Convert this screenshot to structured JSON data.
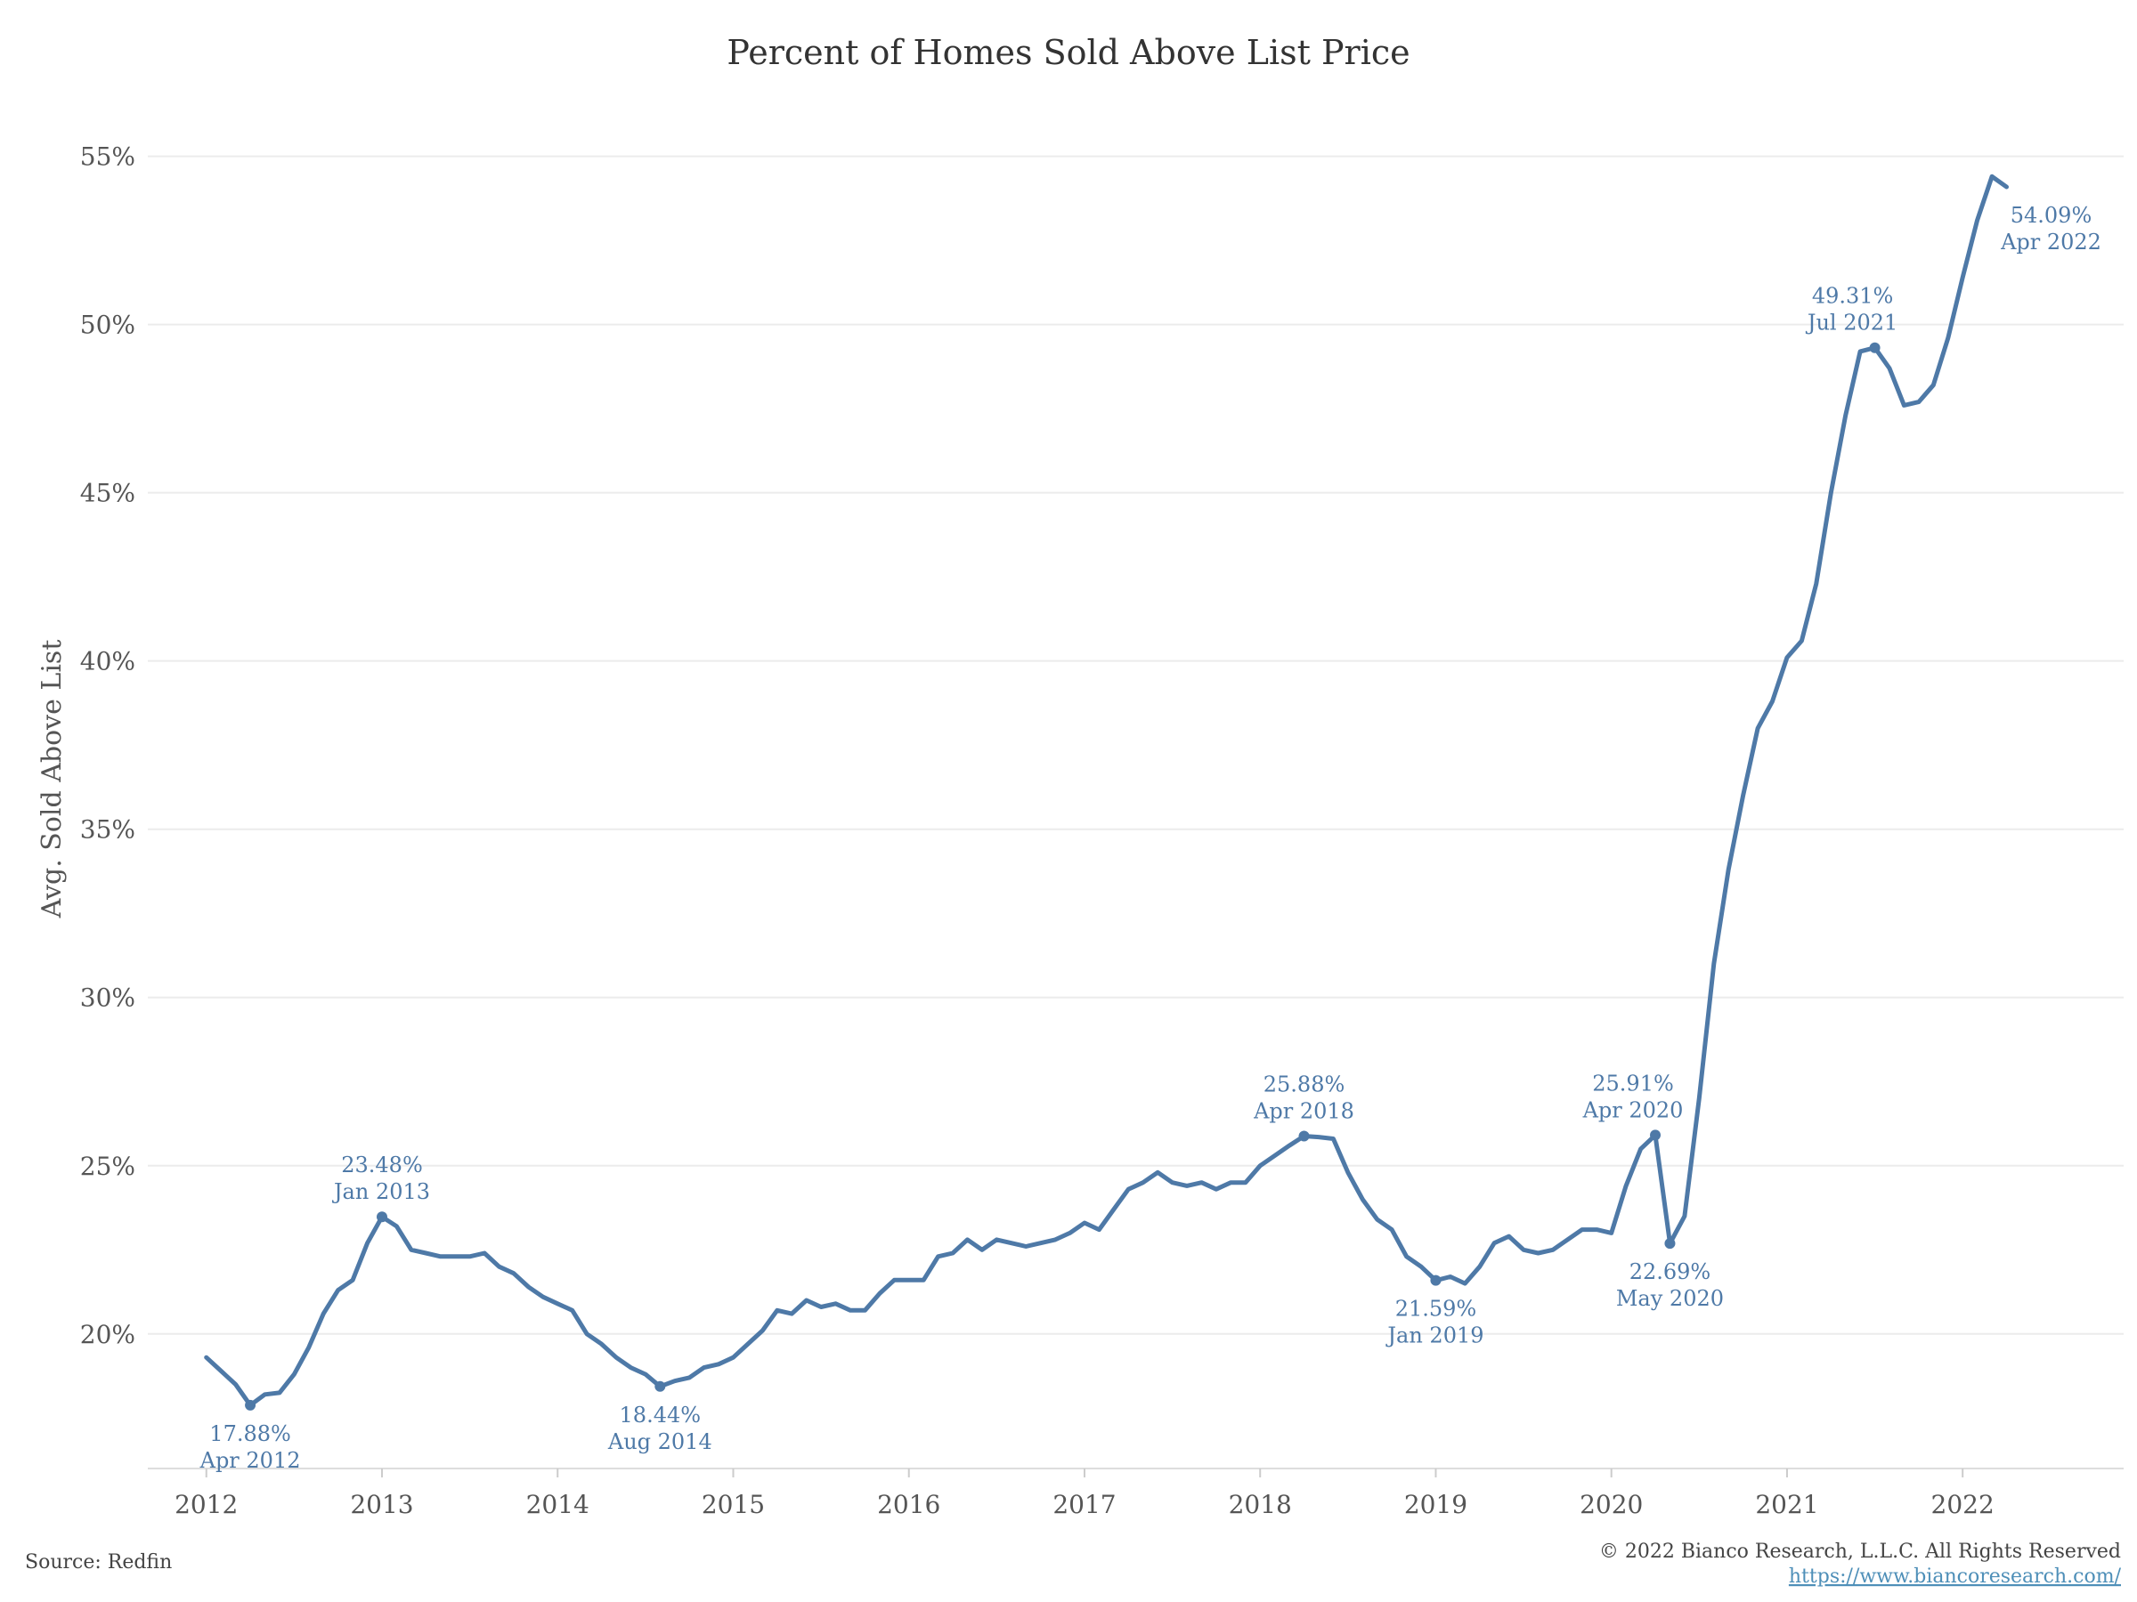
{
  "chart_data": {
    "type": "line",
    "title": "Percent of Homes Sold Above List Price",
    "ylabel": "Avg. Sold Above List",
    "xlabel": "",
    "y_ticks": [
      "55%",
      "50%",
      "45%",
      "40%",
      "35%",
      "30%",
      "25%",
      "20%"
    ],
    "y_tick_values": [
      55,
      50,
      45,
      40,
      35,
      30,
      25,
      20
    ],
    "x_ticks": [
      "2012",
      "2013",
      "2014",
      "2015",
      "2016",
      "2017",
      "2018",
      "2019",
      "2020",
      "2021",
      "2022"
    ],
    "ylim": [
      16,
      57
    ],
    "xlim": [
      "2011-09",
      "2022-12"
    ],
    "grid": true,
    "line_color": "#4e79a7",
    "series": [
      {
        "x": [
          "2012-01",
          "2012-02",
          "2012-03",
          "2012-04",
          "2012-05",
          "2012-06",
          "2012-07",
          "2012-08",
          "2012-09",
          "2012-10",
          "2012-11",
          "2012-12",
          "2013-01",
          "2013-02",
          "2013-03",
          "2013-04",
          "2013-05",
          "2013-06",
          "2013-07",
          "2013-08",
          "2013-09",
          "2013-10",
          "2013-11",
          "2013-12",
          "2014-01",
          "2014-02",
          "2014-03",
          "2014-04",
          "2014-05",
          "2014-06",
          "2014-07",
          "2014-08",
          "2014-09",
          "2014-10",
          "2014-11",
          "2014-12",
          "2015-01",
          "2015-02",
          "2015-03",
          "2015-04",
          "2015-05",
          "2015-06",
          "2015-07",
          "2015-08",
          "2015-09",
          "2015-10",
          "2015-11",
          "2015-12",
          "2016-01",
          "2016-02",
          "2016-03",
          "2016-04",
          "2016-05",
          "2016-06",
          "2016-07",
          "2016-08",
          "2016-09",
          "2016-10",
          "2016-11",
          "2016-12",
          "2017-01",
          "2017-02",
          "2017-03",
          "2017-04",
          "2017-05",
          "2017-06",
          "2017-07",
          "2017-08",
          "2017-09",
          "2017-10",
          "2017-11",
          "2017-12",
          "2018-01",
          "2018-02",
          "2018-03",
          "2018-04",
          "2018-05",
          "2018-06",
          "2018-07",
          "2018-08",
          "2018-09",
          "2018-10",
          "2018-11",
          "2018-12",
          "2019-01",
          "2019-02",
          "2019-03",
          "2019-04",
          "2019-05",
          "2019-06",
          "2019-07",
          "2019-08",
          "2019-09",
          "2019-10",
          "2019-11",
          "2019-12",
          "2020-01",
          "2020-02",
          "2020-03",
          "2020-04",
          "2020-05",
          "2020-06",
          "2020-07",
          "2020-08",
          "2020-09",
          "2020-10",
          "2020-11",
          "2020-12",
          "2021-01",
          "2021-02",
          "2021-03",
          "2021-04",
          "2021-05",
          "2021-06",
          "2021-07",
          "2021-08",
          "2021-09",
          "2021-10",
          "2021-11",
          "2021-12",
          "2022-01",
          "2022-02",
          "2022-03",
          "2022-04"
        ],
        "values": [
          19.3,
          18.9,
          18.5,
          17.88,
          18.2,
          18.25,
          18.8,
          19.6,
          20.6,
          21.3,
          21.6,
          22.7,
          23.48,
          23.2,
          22.5,
          22.4,
          22.3,
          22.3,
          22.3,
          22.4,
          22.0,
          21.8,
          21.4,
          21.1,
          20.9,
          20.7,
          20.0,
          19.7,
          19.3,
          19.0,
          18.8,
          18.44,
          18.6,
          18.7,
          19.0,
          19.1,
          19.3,
          19.7,
          20.1,
          20.7,
          20.6,
          21.0,
          20.8,
          20.9,
          20.7,
          20.7,
          21.2,
          21.6,
          21.6,
          21.6,
          22.3,
          22.4,
          22.8,
          22.5,
          22.8,
          22.7,
          22.6,
          22.7,
          22.8,
          23.0,
          23.3,
          23.1,
          23.7,
          24.3,
          24.5,
          24.8,
          24.5,
          24.4,
          24.5,
          24.3,
          24.5,
          24.5,
          25.0,
          25.3,
          25.6,
          25.88,
          25.85,
          25.8,
          24.8,
          24.0,
          23.4,
          23.1,
          22.3,
          22.0,
          21.59,
          21.7,
          21.5,
          22.0,
          22.7,
          22.9,
          22.5,
          22.4,
          22.5,
          22.8,
          23.1,
          23.1,
          23.0,
          24.4,
          25.5,
          25.91,
          22.69,
          23.5,
          27.0,
          31.0,
          33.8,
          36.0,
          38.0,
          38.8,
          40.1,
          40.6,
          42.3,
          45.0,
          47.3,
          49.2,
          49.31,
          48.7,
          47.6,
          47.7,
          48.2,
          49.6,
          51.4,
          53.1,
          54.4,
          54.09
        ]
      }
    ],
    "annotations": [
      {
        "x": "2012-04",
        "value": 17.88,
        "label": "17.88%",
        "date": "Apr 2012",
        "position": "below",
        "marker": true
      },
      {
        "x": "2013-01",
        "value": 23.48,
        "label": "23.48%",
        "date": "Jan 2013",
        "position": "above",
        "marker": true
      },
      {
        "x": "2014-08",
        "value": 18.44,
        "label": "18.44%",
        "date": "Aug 2014",
        "position": "below",
        "marker": true
      },
      {
        "x": "2018-04",
        "value": 25.88,
        "label": "25.88%",
        "date": "Apr 2018",
        "position": "above",
        "marker": true
      },
      {
        "x": "2019-01",
        "value": 21.59,
        "label": "21.59%",
        "date": "Jan 2019",
        "position": "below",
        "marker": true
      },
      {
        "x": "2020-04",
        "value": 25.91,
        "label": "25.91%",
        "date": "Apr 2020",
        "position": "above-left",
        "marker": true
      },
      {
        "x": "2020-05",
        "value": 22.69,
        "label": "22.69%",
        "date": "May 2020",
        "position": "below",
        "marker": true
      },
      {
        "x": "2021-07",
        "value": 49.31,
        "label": "49.31%",
        "date": "Jul 2021",
        "position": "above-left",
        "marker": true
      },
      {
        "x": "2022-04",
        "value": 54.09,
        "label": "54.09%",
        "date": "Apr 2022",
        "position": "right-below",
        "marker": false
      }
    ]
  },
  "footer": {
    "source": "Source: Redfin",
    "copyright": "© 2022 Bianco Research, L.L.C. All Rights Reserved",
    "url": "https://www.biancoresearch.com/"
  }
}
